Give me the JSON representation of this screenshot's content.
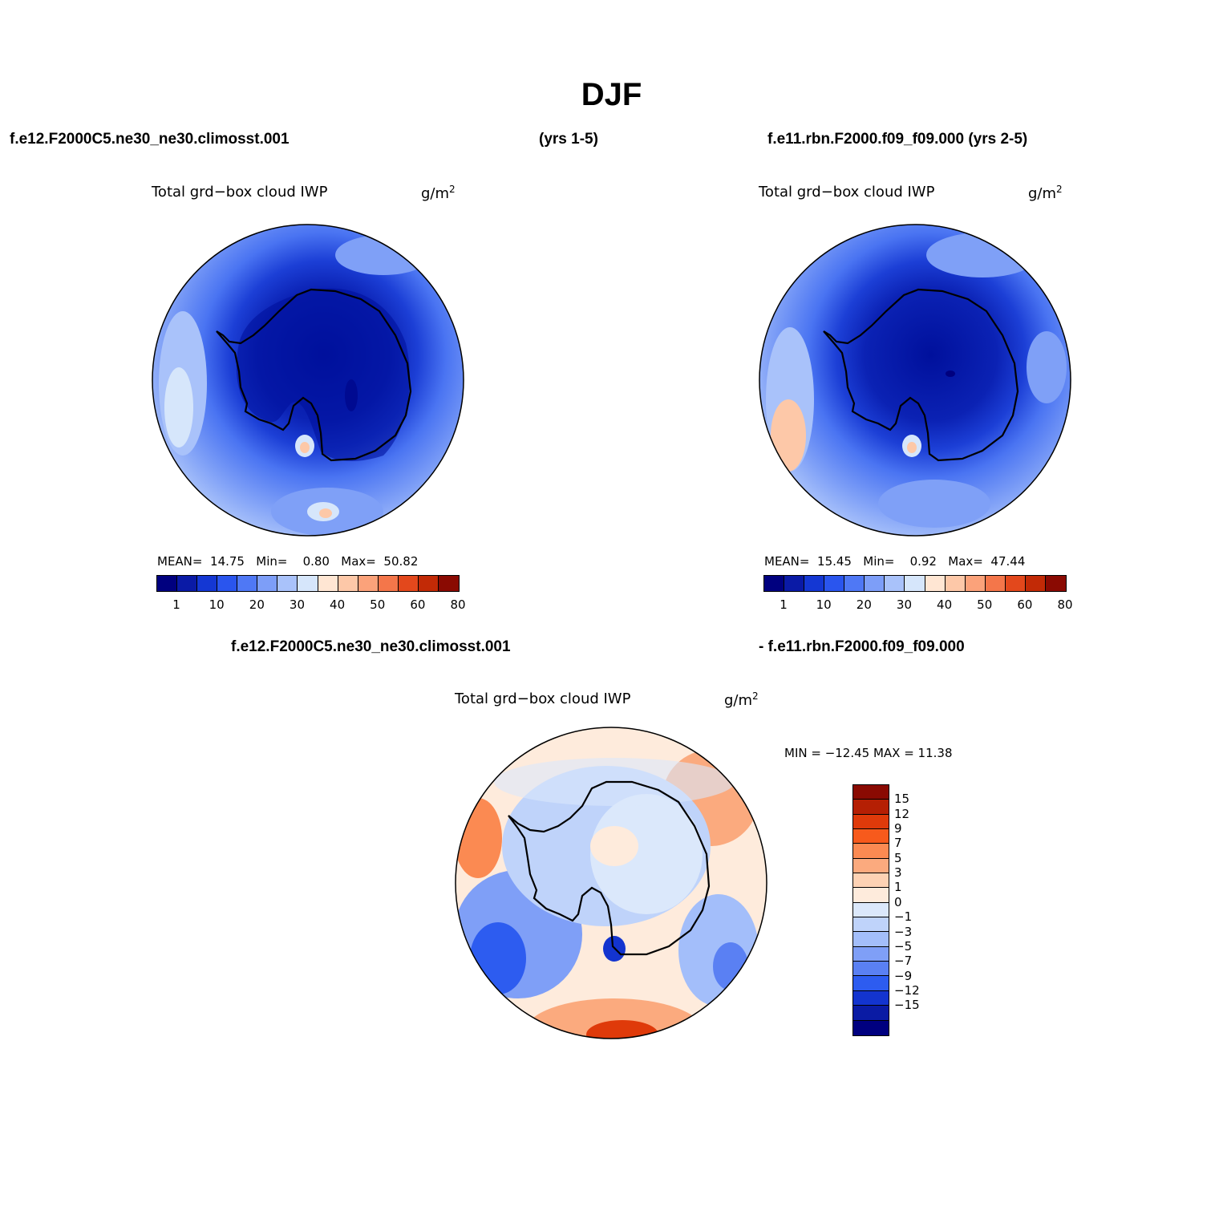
{
  "title": "DJF",
  "case1": {
    "name": "f.e12.F2000C5.ne30_ne30.climosst.001",
    "years": "(yrs 1-5)",
    "variable": "Total grd−box cloud IWP",
    "units": "g/m",
    "units_sup": "2",
    "stats": {
      "mean_label": "MEAN=",
      "mean": "14.75",
      "min_label": "Min=",
      "min": "0.80",
      "max_label": "Max=",
      "max": "50.82"
    }
  },
  "case2": {
    "name": "f.e11.rbn.F2000.f09_f09.000 (yrs 2-5)",
    "variable": "Total grd−box cloud IWP",
    "units": "g/m",
    "units_sup": "2",
    "stats": {
      "mean_label": "MEAN=",
      "mean": "15.45",
      "min_label": "Min=",
      "min": "0.92",
      "max_label": "Max=",
      "max": "47.44"
    }
  },
  "diff": {
    "name_a": "f.e12.F2000C5.ne30_ne30.climosst.001",
    "name_b": "- f.e11.rbn.F2000.f09_f09.000",
    "variable": "Total grd−box cloud IWP",
    "units": "g/m",
    "units_sup": "2",
    "minmax": "MIN = −12.45 MAX =  11.38"
  },
  "abs_colorbar": {
    "colors": [
      "#00007f",
      "#0a1aa6",
      "#1437d3",
      "#2a55ee",
      "#4f78f5",
      "#7d9ef8",
      "#a9c2fa",
      "#d6e6fb",
      "#ffe6d3",
      "#fdc8a8",
      "#fba27a",
      "#f4764a",
      "#e3481c",
      "#c22a06",
      "#8a0a02"
    ],
    "labels": [
      "1",
      "10",
      "20",
      "30",
      "40",
      "50",
      "60",
      "80"
    ]
  },
  "diff_colorbar": {
    "colors": [
      "#8a0a02",
      "#b51f04",
      "#df3a0a",
      "#f75a1c",
      "#fb8a52",
      "#fbaa7e",
      "#fdd2b4",
      "#feebdc",
      "#dbe8fb",
      "#bfd3fa",
      "#a3befa",
      "#7f9ff7",
      "#5a80f3",
      "#2d5cf0",
      "#1334cf",
      "#0a1ba4",
      "#00007f"
    ],
    "labels": [
      "15",
      "12",
      "9",
      "7",
      "5",
      "3",
      "1",
      "0",
      "−1",
      "−3",
      "−5",
      "−7",
      "−9",
      "−12",
      "−15"
    ]
  },
  "map_colors": {
    "land_core": "#00109c",
    "land": "#0b22b4",
    "coast": "#1c3fd6",
    "ocean_mid": "#4a74f2",
    "ocean_light": "#7fa0f7",
    "ocean_pale": "#a9c2fa",
    "ocean_paler": "#d6e6fb",
    "warm": "#fdc8a8",
    "diff_pos": "#fbaa7e",
    "diff_neg": "#a3befa",
    "diff_zero": "#dbe8fb",
    "diff_warm": "#feebdc"
  }
}
